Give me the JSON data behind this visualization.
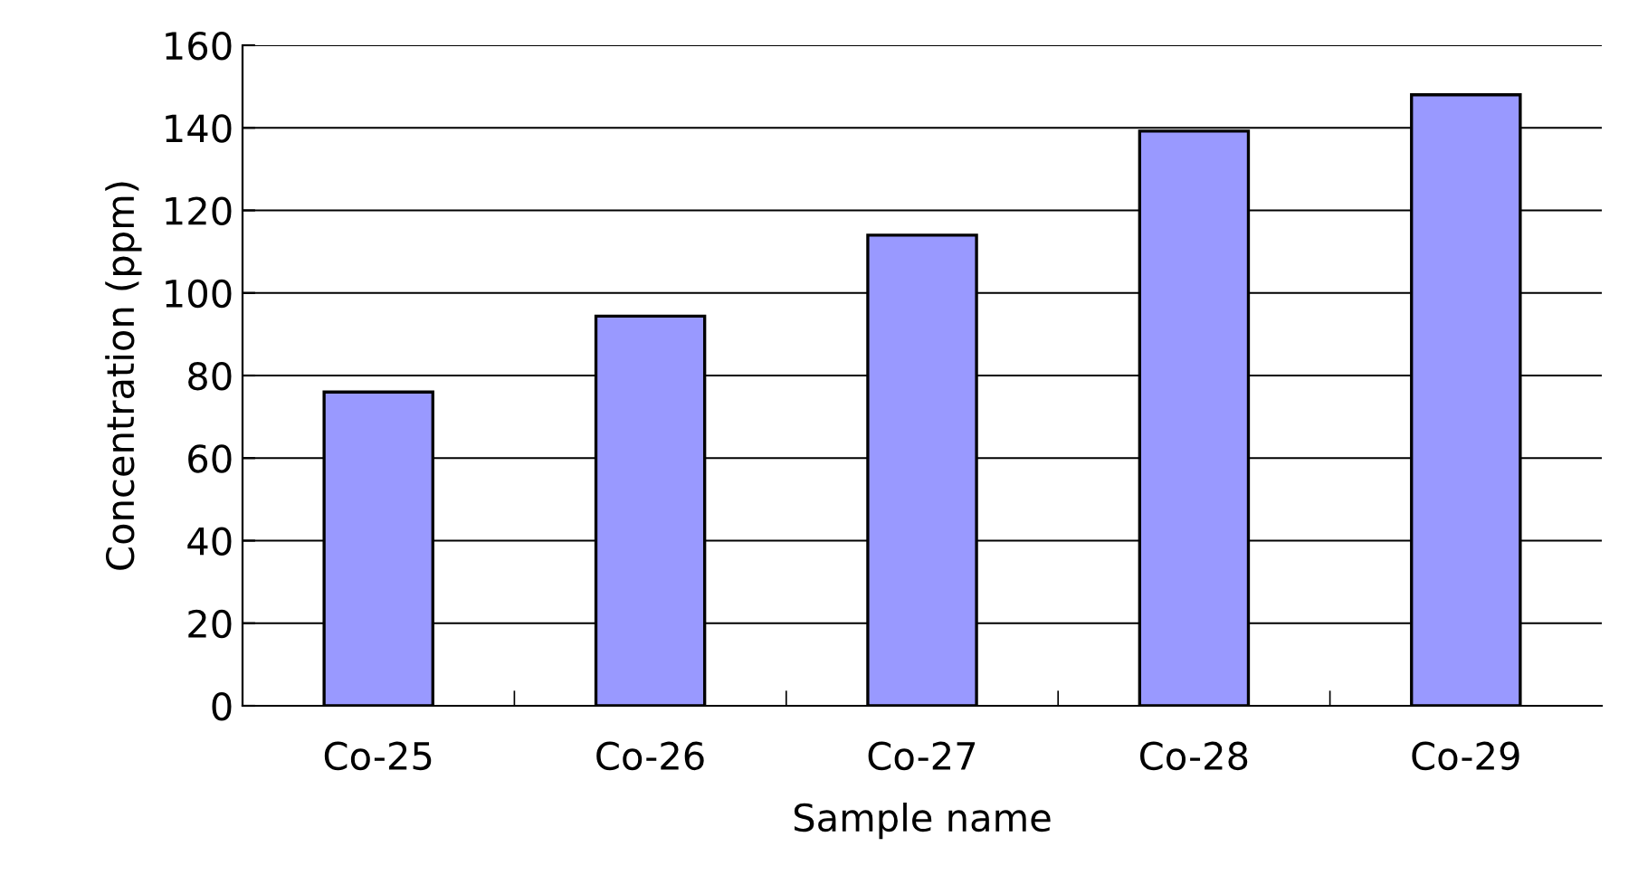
{
  "chart_data": {
    "type": "bar",
    "xlabel": "Sample name",
    "ylabel": "Concentration (ppm)",
    "categories": [
      "Co-25",
      "Co-26",
      "Co-27",
      "Co-28",
      "Co-29"
    ],
    "values": [
      76,
      94.4,
      114,
      139.2,
      148
    ],
    "color": "#9999ff",
    "ylim": [
      0,
      160
    ],
    "yticks": [
      0,
      20,
      40,
      60,
      80,
      100,
      120,
      140,
      160
    ],
    "grid": "y"
  }
}
